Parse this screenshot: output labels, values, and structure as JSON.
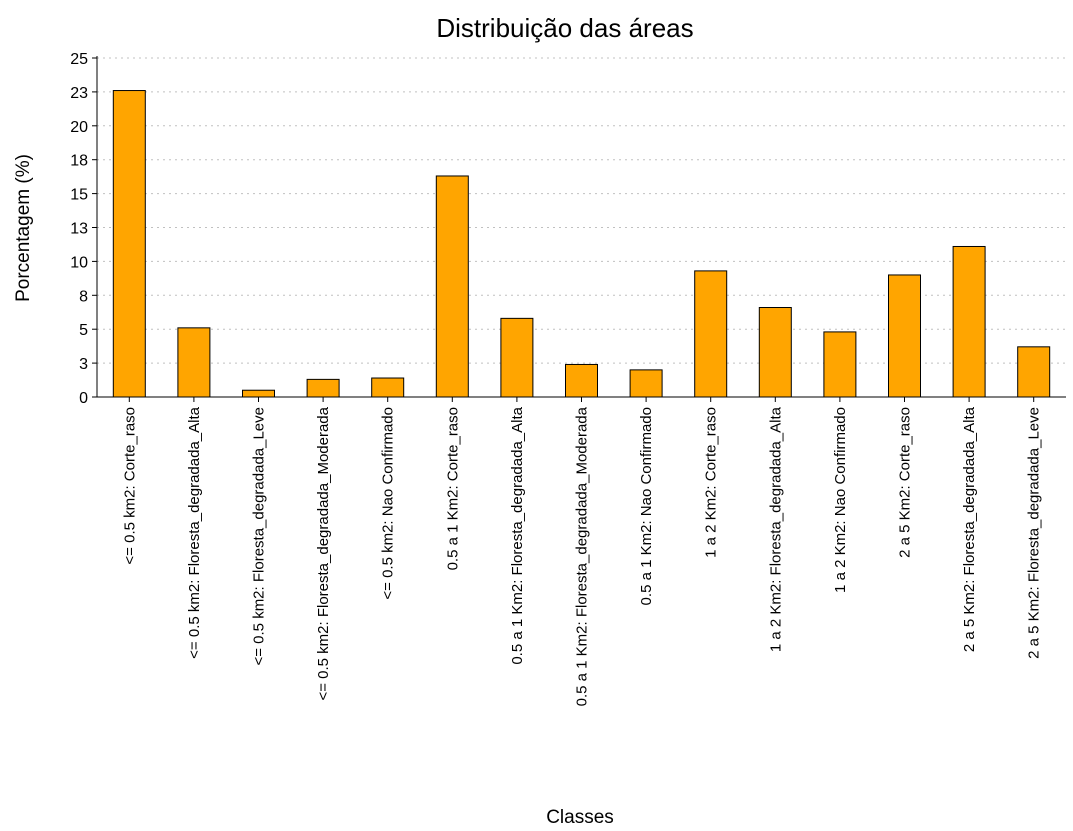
{
  "chart_data": {
    "type": "bar",
    "title": "Distribuição das áreas",
    "xlabel": "Classes",
    "ylabel": "Porcentagem (%)",
    "ylim": [
      0,
      25
    ],
    "yticks": [
      0,
      3,
      5,
      8,
      10,
      13,
      15,
      18,
      20,
      23,
      25
    ],
    "grid": true,
    "bar_color": "#FFA500",
    "categories": [
      "<= 0.5 km2: Corte_raso",
      "<= 0.5 km2: Floresta_degradada_Alta",
      "<= 0.5 km2: Floresta_degradada_Leve",
      "<= 0.5 km2: Floresta_degradada_Moderada",
      "<= 0.5 km2: Nao Confirmado",
      "0.5 a 1 Km2: Corte_raso",
      "0.5 a 1 Km2: Floresta_degradada_Alta",
      "0.5 a 1 Km2: Floresta_degradada_Moderada",
      "0.5 a 1 Km2: Nao Confirmado",
      "1 a 2 Km2: Corte_raso",
      "1 a 2 Km2: Floresta_degradada_Alta",
      "1 a 2 Km2: Nao Confirmado",
      "2 a 5 Km2: Corte_raso",
      "2 a 5 Km2: Floresta_degradada_Alta",
      "2 a 5 Km2: Floresta_degradada_Leve"
    ],
    "values": [
      22.6,
      5.1,
      0.5,
      1.3,
      1.4,
      16.3,
      5.8,
      2.4,
      2.0,
      9.3,
      6.6,
      4.8,
      9.0,
      11.1,
      3.7
    ]
  }
}
